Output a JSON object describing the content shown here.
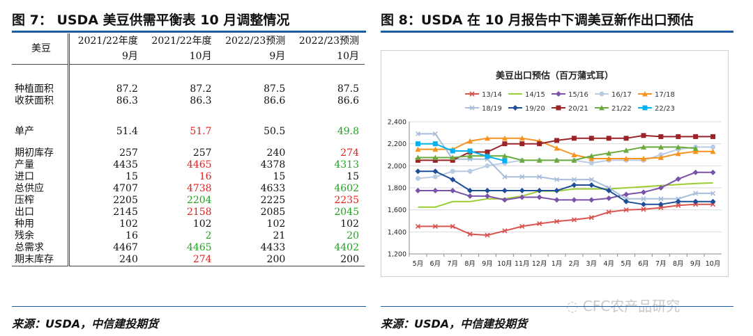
{
  "left": {
    "title": "图 7： USDA 美豆供需平衡表 10 月调整情况",
    "source": "来源：USDA，中信建投期货",
    "header_label": "美豆",
    "columns": [
      {
        "top": "2021/22年度",
        "sub": "9月"
      },
      {
        "top": "2021/22年度",
        "sub": "10月"
      },
      {
        "top": "2022/23预测",
        "sub": "9月"
      },
      {
        "top": "2022/23预测",
        "sub": "10月"
      }
    ],
    "rows": [
      {
        "label": "种植面积",
        "values": [
          "87.2",
          "87.2",
          "87.5",
          "87.5"
        ]
      },
      {
        "label": "收获面积",
        "values": [
          "86.3",
          "86.3",
          "86.6",
          "86.6"
        ]
      },
      {
        "label": "单产",
        "values": [
          "51.4",
          "51.7",
          "50.5",
          "49.8"
        ]
      },
      {
        "label": "期初库存",
        "values": [
          "257",
          "257",
          "240",
          "274"
        ]
      },
      {
        "label": "产量",
        "values": [
          "4435",
          "4465",
          "4378",
          "4313"
        ]
      },
      {
        "label": "进口",
        "values": [
          "15",
          "16",
          "15",
          "15"
        ]
      },
      {
        "label": "总供应",
        "values": [
          "4707",
          "4738",
          "4633",
          "4602"
        ]
      },
      {
        "label": "压榨",
        "values": [
          "2205",
          "2204",
          "2225",
          "2235"
        ]
      },
      {
        "label": "出口",
        "values": [
          "2145",
          "2158",
          "2085",
          "2045"
        ]
      },
      {
        "label": "种用",
        "values": [
          "102",
          "102",
          "102",
          "102"
        ]
      },
      {
        "label": "残余",
        "values": [
          "16",
          "2",
          "21",
          "20"
        ]
      },
      {
        "label": "总需求",
        "values": [
          "4467",
          "4465",
          "4433",
          "4402"
        ]
      },
      {
        "label": "期末库存",
        "values": [
          "240",
          "274",
          "200",
          "200"
        ]
      }
    ],
    "colors": {
      "up": "#e02020",
      "down": "#22a022"
    }
  },
  "right": {
    "title": "图 8：USDA 在 10 月报告中下调美豆新作出口预估",
    "source": "来源：USDA，中信建投期货",
    "watermark": "CFC农产品研究"
  },
  "chart_data": {
    "type": "line",
    "title": "美豆出口预估（百万蒲式耳）",
    "categories": [
      "5月",
      "6月",
      "7月",
      "8月",
      "9月",
      "10月",
      "11月",
      "12月",
      "1月",
      "2月",
      "3月",
      "4月",
      "5月",
      "6月",
      "7月",
      "8月",
      "9月",
      "10月"
    ],
    "ylim": [
      1200,
      2400
    ],
    "yticks": [
      "1,200",
      "1,400",
      "1,600",
      "1,800",
      "2,000",
      "2,200",
      "2,400"
    ],
    "grid": true,
    "legend_position": "top",
    "series": [
      {
        "name": "13/14",
        "color": "#d9534f",
        "marker": "x",
        "values": [
          1450,
          1450,
          1450,
          1380,
          1370,
          1410,
          1450,
          1475,
          1495,
          1510,
          1530,
          1580,
          1600,
          1605,
          1620,
          1640,
          1650,
          1650
        ]
      },
      {
        "name": "14/15",
        "color": "#9acd32",
        "marker": "none",
        "values": [
          1625,
          1625,
          1675,
          1675,
          1700,
          1700,
          1725,
          1770,
          1770,
          1790,
          1790,
          1790,
          1800,
          1810,
          1820,
          1830,
          1840,
          1845
        ]
      },
      {
        "name": "15/16",
        "color": "#7b52a8",
        "marker": "diamond",
        "values": [
          1775,
          1775,
          1775,
          1725,
          1725,
          1690,
          1715,
          1715,
          1690,
          1690,
          1690,
          1705,
          1740,
          1760,
          1800,
          1880,
          1940,
          1940
        ]
      },
      {
        "name": "16/17",
        "color": "#b8cce4",
        "marker": "circle",
        "values": [
          1885,
          1900,
          1950,
          1950,
          2000,
          2025,
          2050,
          2050,
          2050,
          2050,
          2025,
          2050,
          2050,
          2050,
          2100,
          2150,
          2170,
          2170
        ]
      },
      {
        "name": "17/18",
        "color": "#f7931e",
        "marker": "triangle",
        "values": [
          2150,
          2150,
          2150,
          2225,
          2250,
          2250,
          2250,
          2225,
          2160,
          2100,
          2065,
          2065,
          2065,
          2065,
          2075,
          2110,
          2130,
          2130
        ]
      },
      {
        "name": "18/19",
        "color": "#a6bddb",
        "marker": "x",
        "values": [
          2290,
          2290,
          2060,
          2060,
          2060,
          1900,
          1900,
          1900,
          1875,
          1875,
          1875,
          1800,
          1700,
          1700,
          1700,
          1700,
          1750,
          1750
        ]
      },
      {
        "name": "19/20",
        "color": "#1f4e99",
        "marker": "diamond",
        "values": [
          1950,
          1950,
          1875,
          1775,
          1775,
          1775,
          1775,
          1775,
          1775,
          1825,
          1825,
          1775,
          1675,
          1650,
          1650,
          1675,
          1675,
          1675
        ]
      },
      {
        "name": "20/21",
        "color": "#9b2226",
        "marker": "square",
        "values": [
          2050,
          2050,
          2050,
          2125,
          2125,
          2200,
          2200,
          2200,
          2230,
          2250,
          2250,
          2250,
          2250,
          2275,
          2265,
          2265,
          2265,
          2265
        ]
      },
      {
        "name": "21/22",
        "color": "#6bab3e",
        "marker": "triangle",
        "values": [
          2075,
          2075,
          2075,
          2090,
          2090,
          2090,
          2050,
          2050,
          2050,
          2050,
          2090,
          2115,
          2140,
          2170,
          2170,
          2170,
          2158,
          null
        ]
      },
      {
        "name": "22/23",
        "color": "#00b0f0",
        "marker": "square",
        "values": [
          2200,
          2200,
          2135,
          2135,
          2085,
          2045,
          null,
          null,
          null,
          null,
          null,
          null,
          null,
          null,
          null,
          null,
          null,
          null
        ]
      }
    ]
  }
}
